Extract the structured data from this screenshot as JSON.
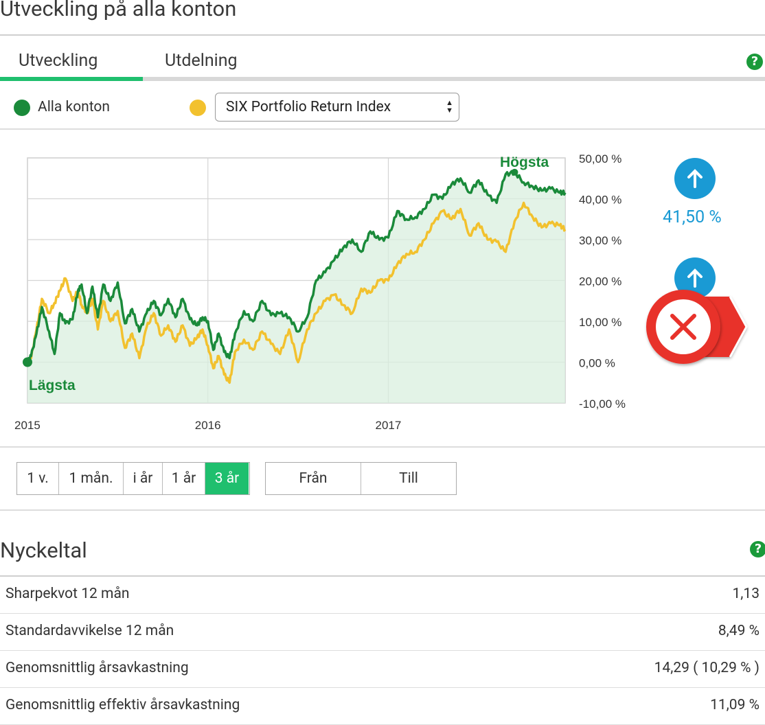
{
  "page": {
    "title": "Utveckling på alla konton"
  },
  "tabs": [
    {
      "label": "Utveckling",
      "active": true
    },
    {
      "label": "Utdelning",
      "active": false
    }
  ],
  "colors": {
    "accent": "#1fbf6e",
    "series_main": "#1a8a3a",
    "series_index": "#f2c12e",
    "help": "#1a9a3a",
    "info_blue": "#1a9ad4",
    "error_red": "#e8322b"
  },
  "legend": {
    "main_label": "Alla konton",
    "index_select_value": "SIX Portfolio Return Index"
  },
  "side_panel": {
    "value_main": "41,50 %",
    "icon_up": "arrow-up-icon",
    "icon_close": "close-icon"
  },
  "periods": [
    {
      "label": "1 v.",
      "active": false
    },
    {
      "label": "1 mån.",
      "active": false
    },
    {
      "label": "i år",
      "active": false
    },
    {
      "label": "1 år",
      "active": false
    },
    {
      "label": "3 år",
      "active": true
    }
  ],
  "range": {
    "from_label": "Från",
    "to_label": "Till"
  },
  "key_figures": {
    "title": "Nyckeltal",
    "rows": [
      {
        "label": "Sharpekvot 12 mån",
        "value": "1,13"
      },
      {
        "label": "Standardavvikelse 12 mån",
        "value": "8,49 %"
      },
      {
        "label": "Genomsnittlig årsavkastning",
        "value": "14,29 ( 10,29 % )"
      },
      {
        "label": "Genomsnittlig effektiv årsavkastning",
        "value": "11,09 %"
      }
    ]
  },
  "chart_data": {
    "type": "line",
    "x_tick_labels": [
      "2015",
      "2016",
      "2017"
    ],
    "y_tick_labels": [
      "50,00 %",
      "40,00 %",
      "30,00 %",
      "20,00 %",
      "10,00 %",
      "0,00 %",
      "-10,00 %"
    ],
    "ylim": [
      -10,
      50
    ],
    "xlim": [
      2015.0,
      2017.98
    ],
    "grid": true,
    "annotations": {
      "high_label": "Högsta",
      "low_label": "Lägsta"
    },
    "series": [
      {
        "color": "#1a8a3a",
        "area_fill": true,
        "x": [
          2015.0,
          2015.02,
          2015.05,
          2015.08,
          2015.12,
          2015.15,
          2015.18,
          2015.21,
          2015.25,
          2015.28,
          2015.3,
          2015.33,
          2015.36,
          2015.39,
          2015.42,
          2015.46,
          2015.5,
          2015.54,
          2015.58,
          2015.62,
          2015.66,
          2015.7,
          2015.74,
          2015.78,
          2015.82,
          2015.86,
          2015.9,
          2015.94,
          2015.97,
          2016.0,
          2016.03,
          2016.06,
          2016.09,
          2016.12,
          2016.15,
          2016.2,
          2016.25,
          2016.3,
          2016.35,
          2016.4,
          2016.45,
          2016.5,
          2016.55,
          2016.6,
          2016.65,
          2016.7,
          2016.75,
          2016.8,
          2016.85,
          2016.9,
          2016.95,
          2017.0,
          2017.05,
          2017.1,
          2017.15,
          2017.2,
          2017.25,
          2017.3,
          2017.35,
          2017.4,
          2017.45,
          2017.5,
          2017.55,
          2017.6,
          2017.65,
          2017.7,
          2017.75,
          2017.8,
          2017.85,
          2017.9,
          2017.95,
          2017.98
        ],
        "y": [
          0.0,
          1.5,
          7.0,
          13.5,
          7.5,
          2.0,
          12.0,
          9.5,
          10.5,
          17.5,
          19.0,
          12.0,
          18.5,
          11.0,
          19.0,
          15.0,
          19.5,
          9.5,
          13.0,
          7.5,
          12.0,
          15.0,
          11.5,
          15.5,
          11.0,
          15.5,
          10.5,
          9.0,
          11.0,
          10.0,
          3.0,
          7.0,
          2.5,
          1.0,
          7.0,
          12.5,
          10.0,
          15.0,
          11.5,
          12.0,
          11.0,
          7.5,
          11.0,
          20.0,
          22.0,
          25.0,
          28.0,
          30.0,
          27.0,
          32.0,
          30.0,
          30.5,
          37.0,
          35.0,
          35.5,
          37.5,
          41.0,
          40.0,
          43.5,
          45.0,
          41.5,
          44.5,
          41.0,
          39.0,
          46.0,
          46.5,
          44.0,
          43.0,
          42.0,
          42.5,
          41.5,
          41.5
        ]
      },
      {
        "color": "#f2c12e",
        "area_fill": false,
        "x": [
          2015.0,
          2015.02,
          2015.05,
          2015.08,
          2015.12,
          2015.15,
          2015.18,
          2015.21,
          2015.25,
          2015.28,
          2015.3,
          2015.33,
          2015.36,
          2015.39,
          2015.42,
          2015.46,
          2015.5,
          2015.54,
          2015.58,
          2015.62,
          2015.66,
          2015.7,
          2015.74,
          2015.78,
          2015.82,
          2015.86,
          2015.9,
          2015.94,
          2015.97,
          2016.0,
          2016.03,
          2016.06,
          2016.09,
          2016.12,
          2016.15,
          2016.2,
          2016.25,
          2016.3,
          2016.35,
          2016.4,
          2016.45,
          2016.5,
          2016.55,
          2016.6,
          2016.65,
          2016.7,
          2016.75,
          2016.8,
          2016.85,
          2016.9,
          2016.95,
          2017.0,
          2017.05,
          2017.1,
          2017.15,
          2017.2,
          2017.25,
          2017.3,
          2017.35,
          2017.4,
          2017.45,
          2017.5,
          2017.55,
          2017.6,
          2017.65,
          2017.7,
          2017.75,
          2017.8,
          2017.85,
          2017.9,
          2017.95,
          2017.98
        ],
        "y": [
          0.0,
          1.0,
          8.0,
          15.5,
          12.0,
          14.5,
          17.5,
          20.5,
          15.0,
          17.5,
          14.0,
          12.0,
          15.5,
          8.0,
          15.0,
          10.0,
          12.5,
          3.5,
          7.0,
          1.0,
          8.5,
          12.0,
          6.5,
          9.0,
          5.0,
          9.0,
          4.0,
          6.0,
          8.0,
          4.0,
          -1.5,
          1.5,
          -3.0,
          -5.0,
          2.5,
          5.5,
          3.0,
          7.5,
          4.5,
          2.0,
          8.0,
          0.0,
          8.0,
          12.0,
          15.0,
          16.5,
          14.0,
          12.0,
          18.0,
          17.0,
          20.0,
          20.0,
          24.0,
          26.5,
          27.0,
          30.0,
          34.0,
          37.0,
          35.0,
          37.5,
          31.0,
          34.0,
          30.0,
          29.5,
          27.0,
          34.5,
          39.0,
          35.5,
          33.0,
          34.0,
          33.5,
          32.5
        ]
      }
    ]
  }
}
